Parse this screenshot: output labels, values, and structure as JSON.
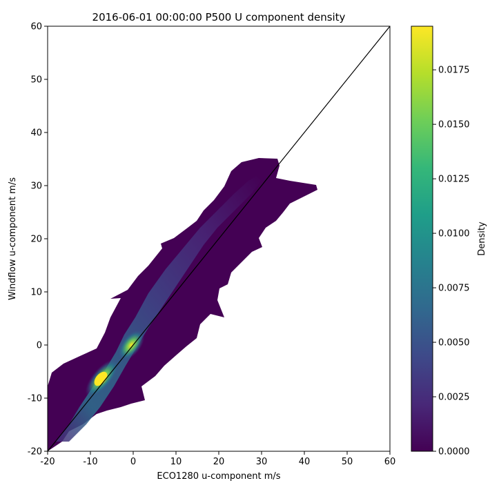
{
  "chart_data": {
    "type": "scatter",
    "title": "2016-06-01 00:00:00 P500 U component density",
    "xlabel": "ECO1280 u-component m/s",
    "ylabel": "Windflow u-component m/s",
    "xlim": [
      -20,
      60
    ],
    "ylim": [
      -20,
      60
    ],
    "xticks": [
      -20,
      -10,
      0,
      10,
      20,
      30,
      40,
      50,
      60
    ],
    "yticks": [
      -20,
      -10,
      0,
      10,
      20,
      30,
      40,
      50,
      60
    ],
    "reference_line": {
      "label": "",
      "points": [
        [
          -20,
          -20
        ],
        [
          60,
          60
        ]
      ],
      "color": "#000000"
    },
    "density_cloud": {
      "description_points": [
        {
          "x": -19,
          "y": -19,
          "density": 0.003
        },
        {
          "x": -15,
          "y": -14,
          "density": 0.006
        },
        {
          "x": -10,
          "y": -9.5,
          "density": 0.012
        },
        {
          "x": -7.5,
          "y": -7,
          "density": 0.0195
        },
        {
          "x": -5,
          "y": -4,
          "density": 0.014
        },
        {
          "x": -2,
          "y": -1,
          "density": 0.011
        },
        {
          "x": 0,
          "y": 0,
          "density": 0.013
        },
        {
          "x": 3,
          "y": 4,
          "density": 0.007
        },
        {
          "x": 8,
          "y": 10,
          "density": 0.004
        },
        {
          "x": 15,
          "y": 18,
          "density": 0.0025
        },
        {
          "x": 25,
          "y": 27,
          "density": 0.001
        },
        {
          "x": 35,
          "y": 31,
          "density": 0.0002
        },
        {
          "x": 42,
          "y": 30,
          "density": 0.0
        }
      ]
    },
    "colorbar": {
      "label": "Density",
      "range": [
        0.0,
        0.0195
      ],
      "ticks": [
        "0.0000",
        "0.0025",
        "0.0050",
        "0.0075",
        "0.0100",
        "0.0125",
        "0.0150",
        "0.0175"
      ],
      "colormap": "viridis",
      "colors": [
        "#440154",
        "#482878",
        "#3e4989",
        "#31688e",
        "#26828e",
        "#1f9e89",
        "#35b779",
        "#6ece58",
        "#b5de2b",
        "#fde725"
      ]
    },
    "grid": false
  }
}
